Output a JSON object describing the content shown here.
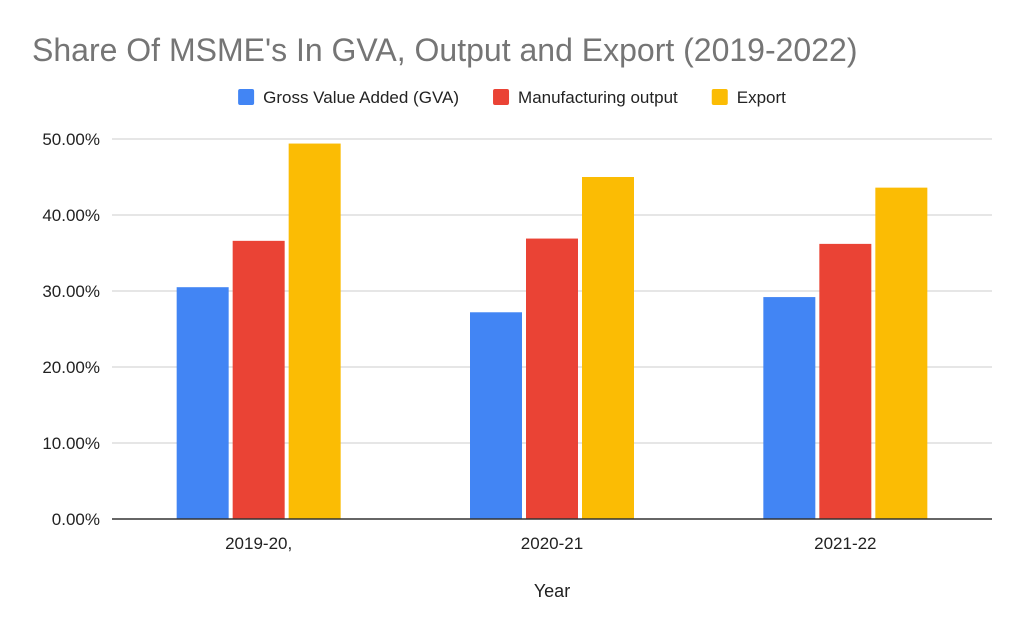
{
  "chart_data": {
    "type": "bar",
    "title": "Share Of MSME's In GVA, Output and Export (2019-2022)",
    "xlabel": "Year",
    "ylabel": "",
    "categories": [
      "2019-20,",
      "2020-21",
      "2021-22"
    ],
    "series": [
      {
        "name": "Gross Value Added (GVA)",
        "color": "#4285F4",
        "values": [
          30.5,
          27.2,
          29.2
        ]
      },
      {
        "name": "Manufacturing output",
        "color": "#EA4335",
        "values": [
          36.6,
          36.9,
          36.2
        ]
      },
      {
        "name": "Export",
        "color": "#FBBC04",
        "values": [
          49.4,
          45.0,
          43.6
        ]
      }
    ],
    "ylim": [
      0,
      50
    ],
    "yticks": [
      {
        "value": 0,
        "label": "0.00%"
      },
      {
        "value": 10,
        "label": "10.00%"
      },
      {
        "value": 20,
        "label": "20.00%"
      },
      {
        "value": 30,
        "label": "30.00%"
      },
      {
        "value": 40,
        "label": "40.00%"
      },
      {
        "value": 50,
        "label": "50.00%"
      }
    ],
    "grid": true,
    "legend_position": "top"
  }
}
